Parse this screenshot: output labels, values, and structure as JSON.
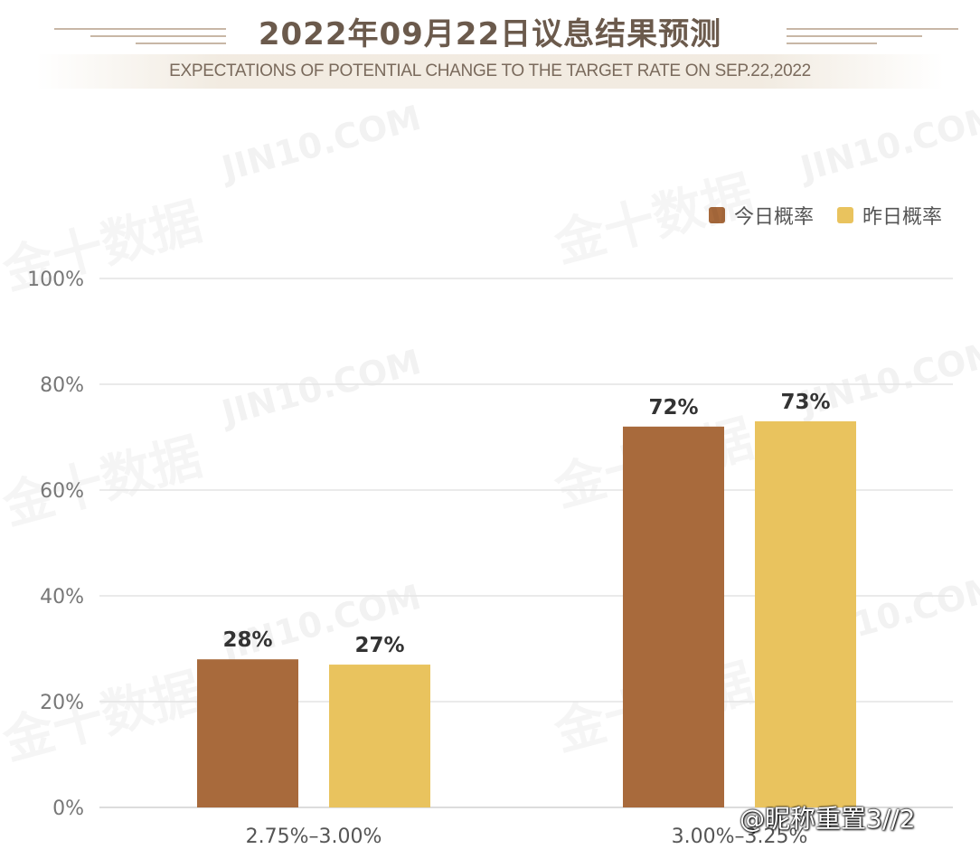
{
  "header": {
    "title": "2022年09月22日议息结果预测",
    "subtitle": "EXPECTATIONS OF POTENTIAL CHANGE TO THE TARGET RATE ON SEP.22,2022"
  },
  "watermark": {
    "text": "JIN10.COM",
    "brand": "金十数据"
  },
  "credit": "@昵称重置3//2",
  "colors": {
    "today": "#a86a3c",
    "yesterday": "#e9c35e",
    "grid": "#e4e4e4",
    "tick_text": "#777777",
    "label_text": "#333333"
  },
  "chart_data": {
    "type": "bar",
    "title": "2022年09月22日议息结果预测",
    "subtitle": "EXPECTATIONS OF POTENTIAL CHANGE TO THE TARGET RATE ON SEP.22,2022",
    "categories": [
      "2.75%–3.00%",
      "3.00%–3.25%"
    ],
    "series": [
      {
        "name": "今日概率",
        "values": [
          28,
          72
        ],
        "labels": [
          "28%",
          "72%"
        ]
      },
      {
        "name": "昨日概率",
        "values": [
          27,
          73
        ],
        "labels": [
          "27%",
          "73%"
        ]
      }
    ],
    "ylim": [
      0,
      100
    ],
    "yticks": [
      0,
      20,
      40,
      60,
      80,
      100
    ],
    "ytick_labels": [
      "0%",
      "20%",
      "40%",
      "60%",
      "80%",
      "100%"
    ],
    "grid": true,
    "legend_position": "top-right"
  }
}
